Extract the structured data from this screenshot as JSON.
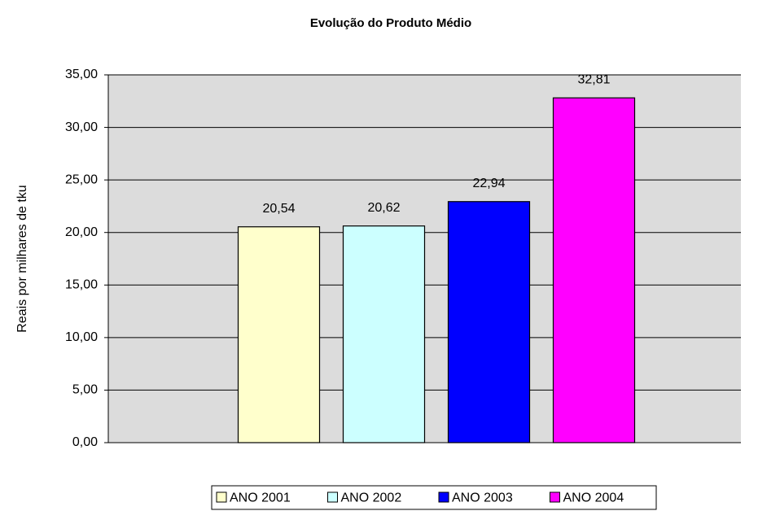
{
  "chart_data": {
    "type": "bar",
    "title": "Evolução do Produto Médio",
    "y_label": "Reais por milhares de tku",
    "categories": [
      null
    ],
    "series": [
      {
        "name": "ANO 2001",
        "color": "#ffffcc",
        "values": [
          20.54
        ],
        "value_labels": [
          "20,54"
        ]
      },
      {
        "name": "ANO 2002",
        "color": "#ccffff",
        "values": [
          20.62
        ],
        "value_labels": [
          "20,62"
        ]
      },
      {
        "name": "ANO 2003",
        "color": "#0000ff",
        "values": [
          22.94
        ],
        "value_labels": [
          "22,94"
        ]
      },
      {
        "name": "ANO 2004",
        "color": "#ff00ff",
        "values": [
          32.81
        ],
        "value_labels": [
          "32,81"
        ]
      }
    ],
    "ylim": [
      0,
      35
    ],
    "yticks": [
      {
        "value": 0,
        "label": "0,00"
      },
      {
        "value": 5,
        "label": "5,00"
      },
      {
        "value": 10,
        "label": "10,00"
      },
      {
        "value": 15,
        "label": "15,00"
      },
      {
        "value": 20,
        "label": "20,00"
      },
      {
        "value": 25,
        "label": "25,00"
      },
      {
        "value": 30,
        "label": "30,00"
      },
      {
        "value": 35,
        "label": "35,00"
      }
    ],
    "grid": true,
    "legend": "bottom"
  }
}
